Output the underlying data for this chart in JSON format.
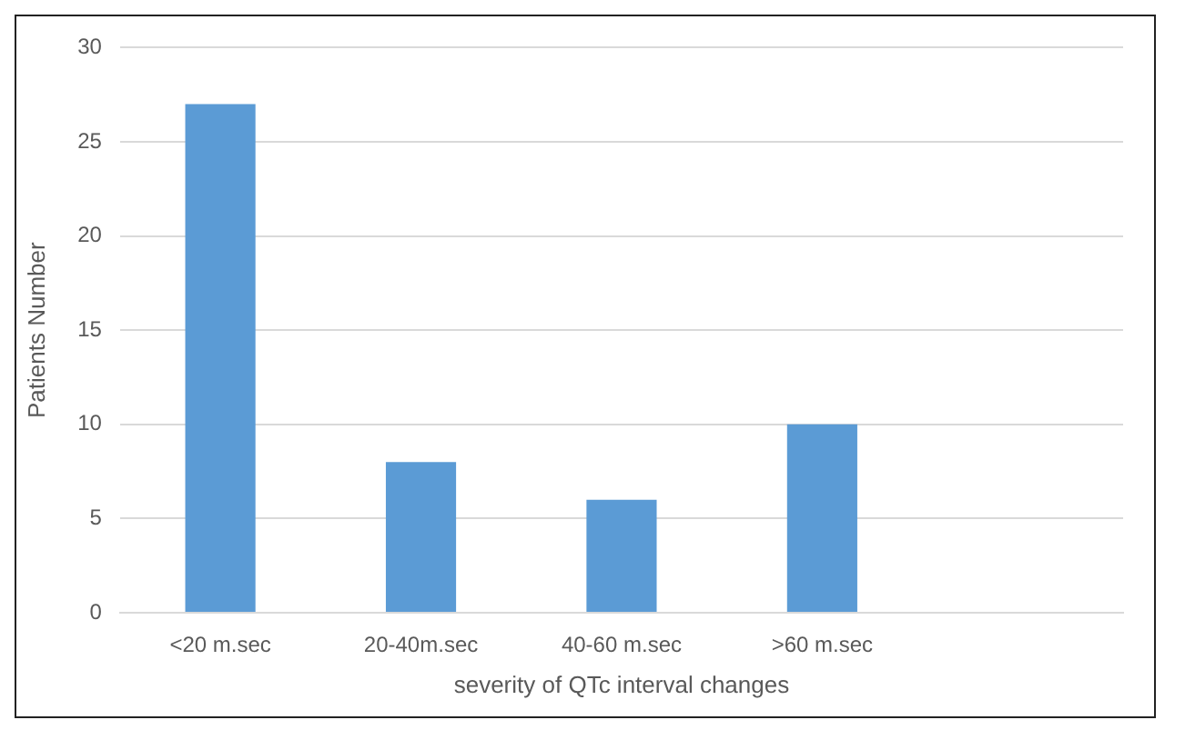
{
  "chart_data": {
    "type": "bar",
    "xlabel": "severity of QTc interval changes",
    "ylabel": "Patients Number",
    "categories": [
      "<20 m.sec",
      "20-40m.sec",
      "40-60 m.sec",
      ">60 m.sec",
      null
    ],
    "values": [
      27,
      8,
      6,
      10,
      null
    ],
    "color": "#5b9bd5",
    "ylim": [
      0,
      30
    ],
    "yticks": [
      0,
      5,
      10,
      15,
      20,
      25,
      30
    ],
    "grid": "y"
  }
}
